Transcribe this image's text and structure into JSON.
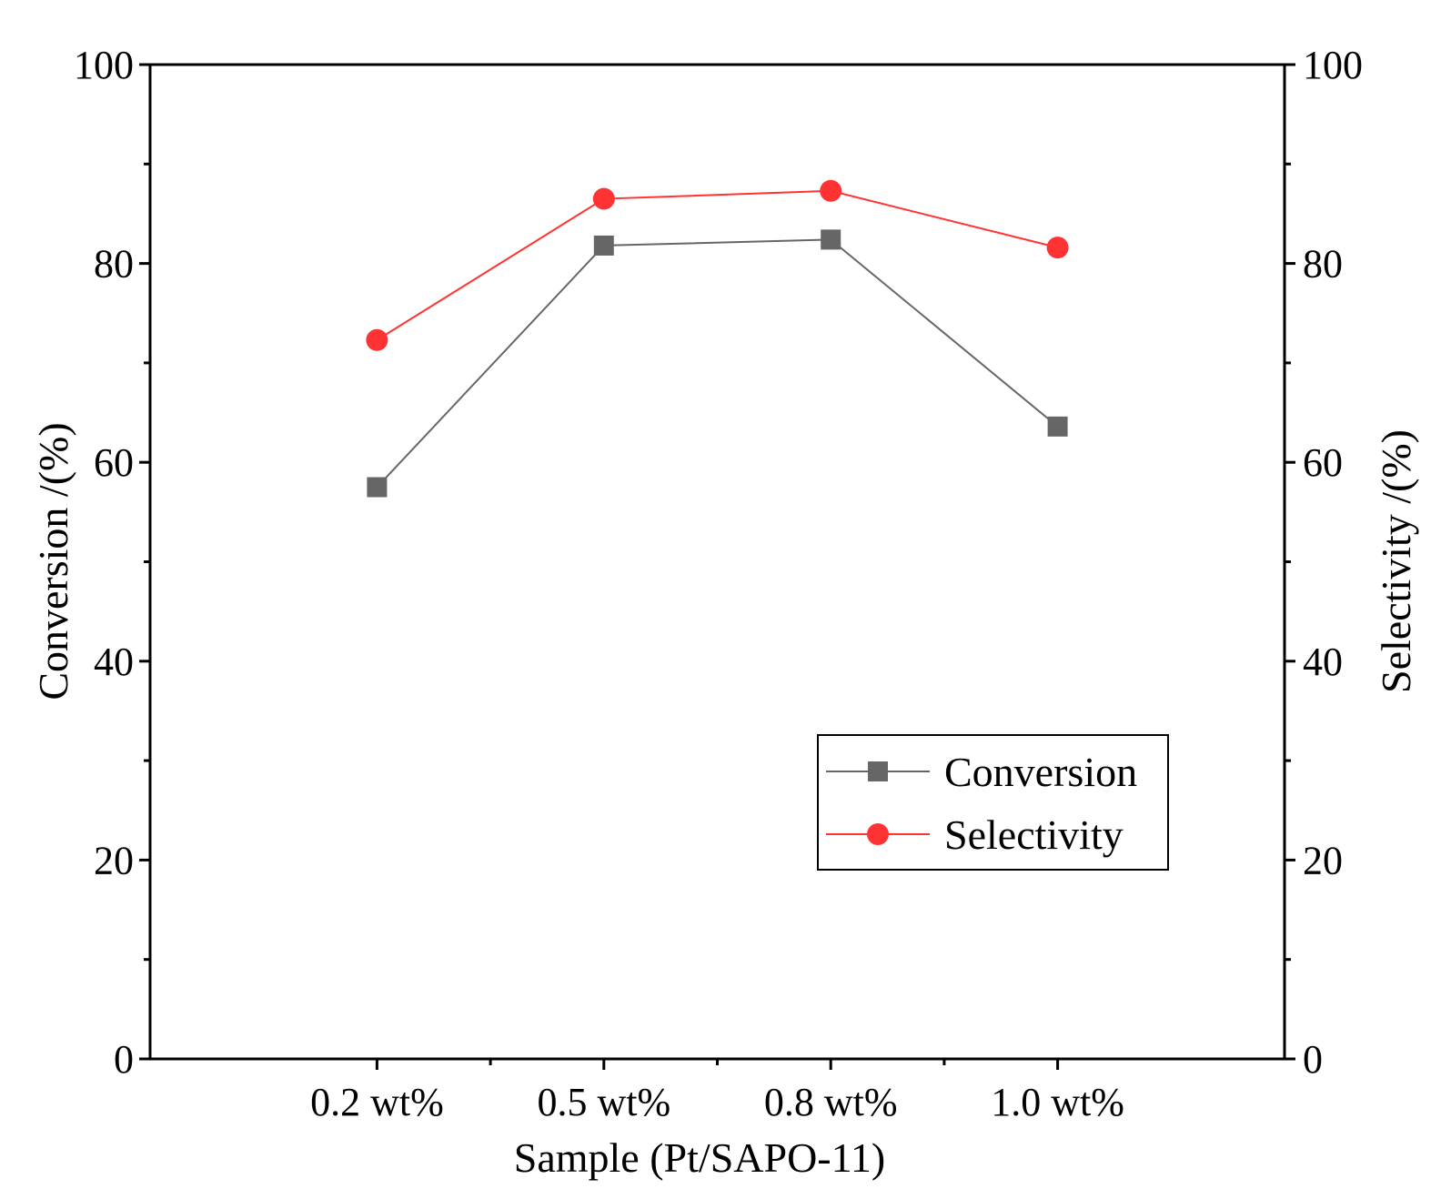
{
  "chart_data": {
    "type": "line",
    "categories": [
      "0.2 wt%",
      "0.5 wt%",
      "0.8 wt%",
      "1.0 wt%"
    ],
    "series": [
      {
        "name": "Conversion",
        "axis": "left",
        "marker": "square",
        "color": "#666666",
        "values": [
          57.5,
          81.8,
          82.4,
          63.6
        ]
      },
      {
        "name": "Selectivity",
        "axis": "right",
        "marker": "circle",
        "color": "#ff3333",
        "values": [
          72.3,
          86.5,
          87.3,
          81.6
        ]
      }
    ],
    "xlabel": "Sample (Pt/SAPO-11)",
    "ylabel_left": "Conversion /(%)",
    "ylabel_right": "Selectivity /(%)",
    "ylim_left": [
      0,
      100
    ],
    "ylim_right": [
      0,
      100
    ],
    "yticks": [
      "0",
      "20",
      "40",
      "60",
      "80",
      "100"
    ],
    "grid": false,
    "legend_position": "center-right"
  }
}
